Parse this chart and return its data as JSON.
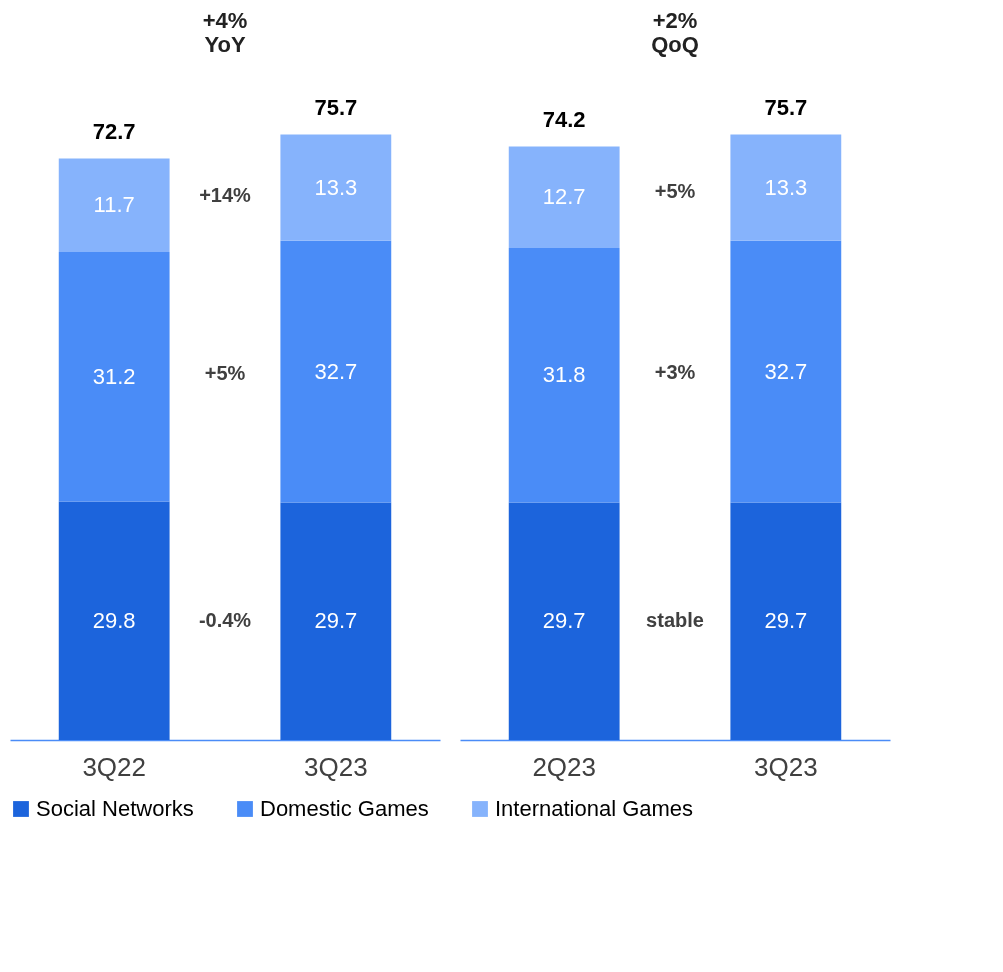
{
  "chart_data": [
    {
      "type": "bar",
      "stacked": true,
      "categories": [
        "3Q22",
        "3Q23"
      ],
      "data_labels": true,
      "totals": [
        "72.7",
        "75.7"
      ],
      "legend": "bottom",
      "annotations": [
        "+4% YoY",
        "+14%",
        "+5%",
        "-0.4%"
      ],
      "series": [
        {
          "name": "Social Networks",
          "color": "#1c64dc",
          "values": [
            29.8,
            29.7
          ]
        },
        {
          "name": "Domestic Games",
          "color": "#4a8cf7",
          "values": [
            31.2,
            32.7
          ]
        },
        {
          "name": "International Games",
          "color": "#86b3fc",
          "values": [
            11.7,
            13.3
          ]
        }
      ]
    },
    {
      "type": "bar",
      "stacked": true,
      "categories": [
        "2Q23",
        "3Q23"
      ],
      "data_labels": true,
      "totals": [
        "74.2",
        "75.7"
      ],
      "legend": "bottom",
      "annotations": [
        "+2% QoQ",
        "+5%",
        "+3%",
        "stable"
      ],
      "series": [
        {
          "name": "Social Networks",
          "color": "#1c64dc",
          "values": [
            29.7,
            29.7
          ]
        },
        {
          "name": "Domestic Games",
          "color": "#4a8cf7",
          "values": [
            31.8,
            32.7
          ]
        },
        {
          "name": "International Games",
          "color": "#86b3fc",
          "values": [
            12.7,
            13.3
          ]
        }
      ]
    }
  ]
}
